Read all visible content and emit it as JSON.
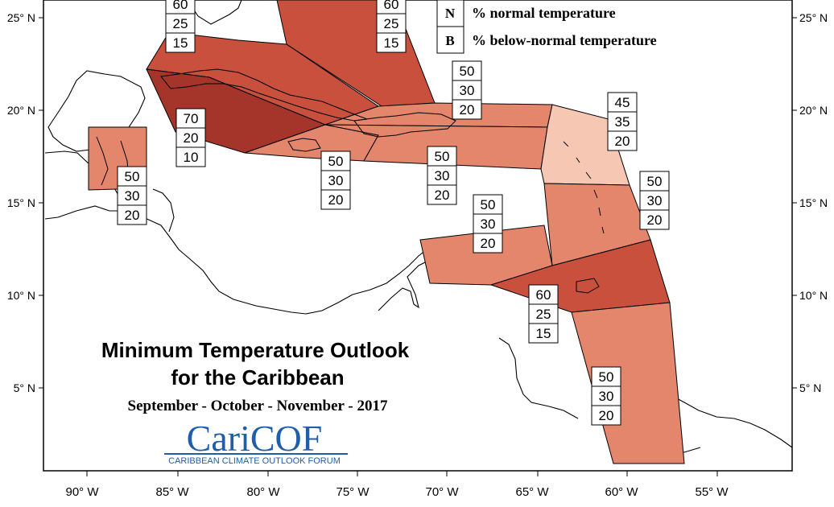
{
  "title_line1": "Minimum Temperature Outlook",
  "title_line2": "for the Caribbean",
  "subtitle": "September - October - November - 2017",
  "logo": {
    "main": "CariCOF",
    "sub": "CARIBBEAN CLIMATE OUTLOOK FORUM"
  },
  "legend": [
    {
      "letter": "N",
      "text": "% normal temperature"
    },
    {
      "letter": "B",
      "text": "% below-normal temperature"
    }
  ],
  "lat_labels": [
    "25° N",
    "20° N",
    "15° N",
    "10° N",
    "5° N"
  ],
  "lon_labels": [
    "90° W",
    "85° W",
    "80° W",
    "75° W",
    "70° W",
    "65° W",
    "60° W",
    "55° W"
  ],
  "colors": {
    "a70": "#a5352a",
    "a60": "#c9503c",
    "a50": "#e4866c",
    "a45": "#f6c7b2",
    "outline": "#000000"
  },
  "regions": [
    {
      "id": "bahamas-north-west",
      "above": 60,
      "normal": 25,
      "below": 15,
      "color": "a60"
    },
    {
      "id": "bahamas-south-east",
      "above": 60,
      "normal": 25,
      "below": 15,
      "color": "a60"
    },
    {
      "id": "cuba-west-jamaica",
      "above": 70,
      "normal": 20,
      "below": 10,
      "color": "a70"
    },
    {
      "id": "belize",
      "above": 50,
      "normal": 30,
      "below": 20,
      "color": "a50"
    },
    {
      "id": "jamaica",
      "above": 50,
      "normal": 30,
      "below": 20,
      "color": "a50"
    },
    {
      "id": "hispaniola",
      "above": 50,
      "normal": 30,
      "below": 20,
      "color": "a50"
    },
    {
      "id": "hispaniola-south",
      "above": 50,
      "normal": 30,
      "below": 20,
      "color": "a50"
    },
    {
      "id": "leeward-islands",
      "above": 45,
      "normal": 35,
      "below": 20,
      "color": "a45"
    },
    {
      "id": "windward-islands",
      "above": 50,
      "normal": 30,
      "below": 20,
      "color": "a50"
    },
    {
      "id": "abc-islands",
      "above": 50,
      "normal": 30,
      "below": 20,
      "color": "a50"
    },
    {
      "id": "trinidad-tobago",
      "above": 60,
      "normal": 25,
      "below": 15,
      "color": "a60"
    },
    {
      "id": "guianas",
      "above": 50,
      "normal": 30,
      "below": 20,
      "color": "a50"
    }
  ]
}
